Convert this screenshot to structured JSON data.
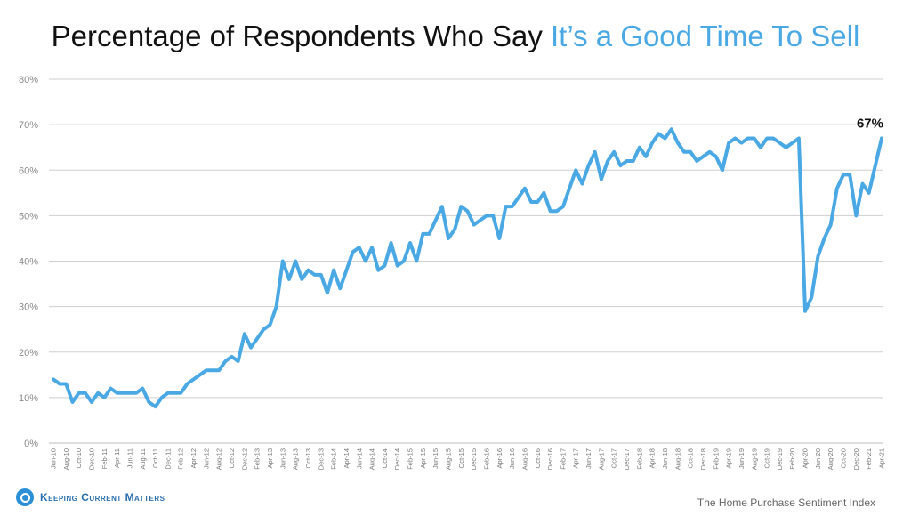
{
  "header": {
    "title_main": "Percentage of Respondents Who Say ",
    "title_highlight": "It’s a Good Time To Sell"
  },
  "footer": {
    "logo_text": "Keeping Current Matters",
    "source": "The Home Purchase Sentiment Index"
  },
  "colors": {
    "line": "#4aa9e4",
    "highlight": "#4aa9e4",
    "grid": "#cfcfcf"
  },
  "chart_data": {
    "type": "line",
    "title": "Percentage of Respondents Who Say It’s a Good Time To Sell",
    "xlabel": "",
    "ylabel": "",
    "ylim": [
      0,
      80
    ],
    "yticks": [
      "0%",
      "10%",
      "20%",
      "30%",
      "40%",
      "50%",
      "60%",
      "70%",
      "80%"
    ],
    "grid": true,
    "x_tick_labels": [
      "Jun-10",
      "Aug-10",
      "Oct-10",
      "Dec-10",
      "Feb-11",
      "Apr-11",
      "Jun-11",
      "Aug-11",
      "Oct-11",
      "Dec-11",
      "Feb-12",
      "Apr-12",
      "Jun-12",
      "Aug-12",
      "Oct-12",
      "Dec-12",
      "Feb-13",
      "Apr-13",
      "Jun-13",
      "Aug-13",
      "Oct-13",
      "Dec-13",
      "Feb-14",
      "Apr-14",
      "Jun-14",
      "Aug-14",
      "Oct-14",
      "Dec-14",
      "Feb-15",
      "Apr-15",
      "Jun-15",
      "Aug-15",
      "Oct-15",
      "Dec-15",
      "Feb-16",
      "Apr-16",
      "Jun-16",
      "Aug-16",
      "Oct-16",
      "Dec-16",
      "Feb-17",
      "Apr-17",
      "Jun-17",
      "Aug-17",
      "Oct-17",
      "Dec-17",
      "Feb-18",
      "Apr-18",
      "Jun-18",
      "Aug-18",
      "Oct-18",
      "Dec-18",
      "Feb-19",
      "Apr-19",
      "Jun-19",
      "Aug-19",
      "Oct-19",
      "Dec-19",
      "Feb-20",
      "Apr-20",
      "Jun-20",
      "Aug-20",
      "Oct-20",
      "Dec-20",
      "Feb-21",
      "Apr-21"
    ],
    "series": [
      {
        "values": [
          14,
          13,
          13,
          9,
          11,
          11,
          9,
          11,
          10,
          12,
          11,
          11,
          11,
          11,
          12,
          9,
          8,
          10,
          11,
          11,
          11,
          13,
          14,
          15,
          16,
          16,
          16,
          18,
          19,
          18,
          24,
          21,
          23,
          25,
          26,
          30,
          40,
          36,
          40,
          36,
          38,
          37,
          37,
          33,
          38,
          34,
          38,
          42,
          43,
          40,
          43,
          38,
          39,
          44,
          39,
          40,
          44,
          40,
          46,
          46,
          49,
          52,
          45,
          47,
          52,
          51,
          48,
          49,
          50,
          50,
          45,
          52,
          52,
          54,
          56,
          53,
          53,
          55,
          51,
          51,
          52,
          56,
          60,
          57,
          61,
          64,
          58,
          62,
          64,
          61,
          62,
          62,
          65,
          63,
          66,
          68,
          67,
          69,
          66,
          64,
          64,
          62,
          63,
          64,
          63,
          60,
          66,
          67,
          66,
          67,
          67,
          65,
          67,
          67,
          66,
          65,
          66,
          67,
          29,
          32,
          41,
          45,
          48,
          56,
          59,
          59,
          50,
          57,
          55,
          61,
          67
        ]
      }
    ],
    "annotations": [
      {
        "label": "67%",
        "target": "last-point"
      }
    ]
  }
}
